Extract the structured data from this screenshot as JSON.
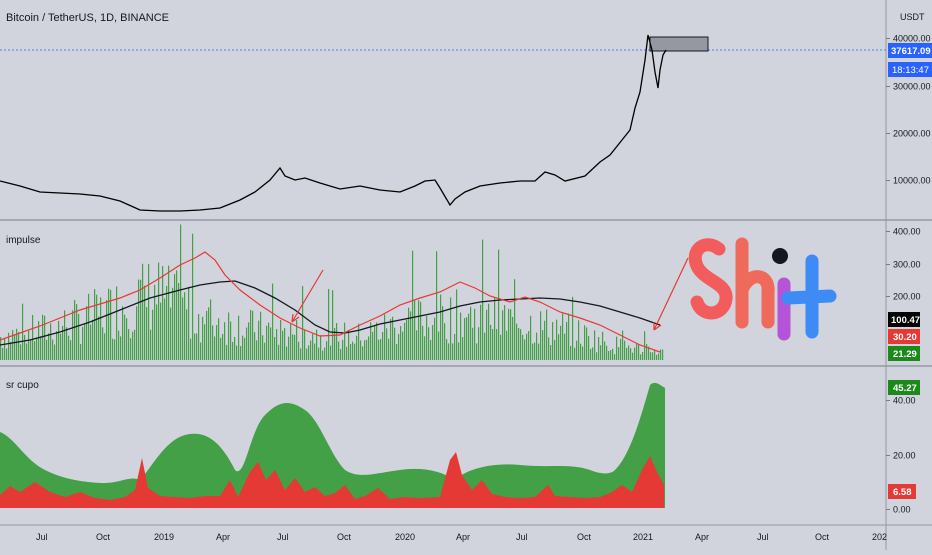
{
  "header": {
    "symbol_title": "Bitcoin / TetherUS, 1D, BINANCE",
    "currency": "USDT"
  },
  "panes": {
    "price": {
      "y_ticks": [
        "40000.00",
        "30000.00",
        "20000.00",
        "10000.00"
      ],
      "last_price": "37617.09",
      "countdown": "18:13:47"
    },
    "impulse": {
      "title": "impulse",
      "y_ticks": [
        "400.00",
        "300.00",
        "200.00"
      ],
      "badges": [
        "100.47",
        "30.20",
        "21.29"
      ]
    },
    "sr_cupo": {
      "title": "sr cupo",
      "y_ticks": [
        "40.00",
        "20.00",
        "0.00"
      ],
      "badges": [
        "45.27",
        "6.58"
      ]
    }
  },
  "time_axis": [
    "Jul",
    "Oct",
    "2019",
    "Apr",
    "Jul",
    "Oct",
    "2020",
    "Apr",
    "Jul",
    "Oct",
    "2021",
    "Apr",
    "Jul",
    "Oct",
    "202"
  ],
  "drawing_text": "Shit",
  "colors": {
    "background": "#d1d4dc",
    "price_line": "#000000",
    "volume_bars": "#43a047",
    "red_line": "#e53935",
    "black_badge": "#000000",
    "red_badge": "#e53935",
    "green_badge": "#1b8a1b",
    "blue_badge": "#2962ff",
    "area_green": "#43a047",
    "area_red": "#e53935"
  },
  "chart_data": [
    {
      "type": "line",
      "title": "Bitcoin / TetherUS, 1D, BINANCE",
      "x": [
        "2018-06",
        "2018-09",
        "2018-12",
        "2019-03",
        "2019-06",
        "2019-09",
        "2019-12",
        "2020-03",
        "2020-06",
        "2020-09",
        "2020-12",
        "2021-01",
        "2021-02"
      ],
      "series": [
        {
          "values": [
            6500,
            6600,
            3500,
            4000,
            11000,
            9500,
            7200,
            5000,
            9500,
            11000,
            23000,
            40000,
            37617
          ]
        }
      ],
      "ylabel": "USDT",
      "ylim": [
        0,
        45000
      ]
    },
    {
      "type": "bar",
      "title": "impulse",
      "series": [
        {
          "values": [
            90,
            120,
            180,
            260,
            160,
            120,
            100,
            90,
            150,
            170,
            150,
            120,
            60,
            30
          ],
          "kind": "histogram"
        },
        {
          "values": [
            50,
            90,
            150,
            250,
            160,
            100,
            70,
            90,
            180,
            170,
            120,
            80,
            40,
            30
          ],
          "kind": "line"
        },
        {
          "values": [
            40,
            80,
            130,
            240,
            200,
            130,
            110,
            150,
            180,
            200,
            190,
            160,
            120,
            100
          ],
          "kind": "line"
        }
      ],
      "ylim": [
        0,
        420
      ]
    },
    {
      "type": "area",
      "title": "sr cupo",
      "series": [
        {
          "values": [
            30,
            15,
            10,
            35,
            10,
            40,
            15,
            10,
            20,
            15,
            10,
            45
          ],
          "kind": "area"
        },
        {
          "values": [
            10,
            5,
            20,
            8,
            15,
            5,
            20,
            5,
            10,
            5,
            15,
            10
          ],
          "kind": "area"
        }
      ],
      "ylim": [
        0,
        50
      ]
    }
  ]
}
